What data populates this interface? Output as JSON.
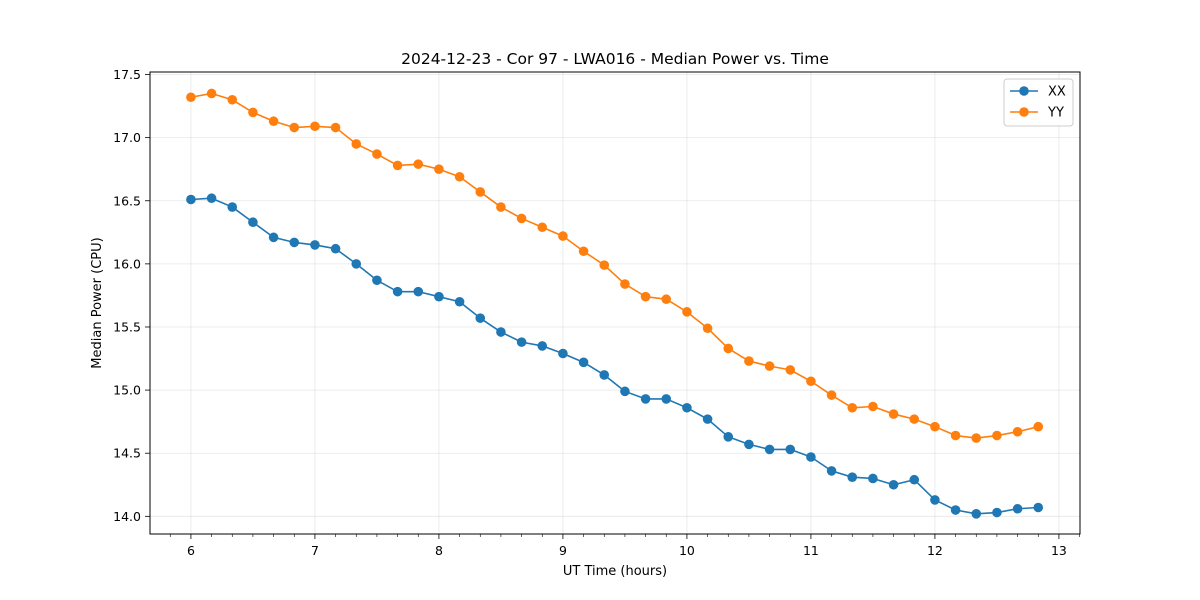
{
  "chart_data": {
    "type": "line",
    "title": "2024-12-23 - Cor 97 - LWA016 - Median Power vs. Time",
    "xlabel": "UT Time (hours)",
    "ylabel": "Median Power (CPU)",
    "xlim": [
      5.67,
      13.17
    ],
    "ylim": [
      13.86,
      17.52
    ],
    "xticks": [
      6,
      7,
      8,
      9,
      10,
      11,
      12,
      13
    ],
    "xtick_labels": [
      "6",
      "7",
      "8",
      "9",
      "10",
      "11",
      "12",
      "13"
    ],
    "yticks": [
      14.0,
      14.5,
      15.0,
      15.5,
      16.0,
      16.5,
      17.0,
      17.5
    ],
    "ytick_labels": [
      "14.0",
      "14.5",
      "15.0",
      "15.5",
      "16.0",
      "16.5",
      "17.0",
      "17.5"
    ],
    "grid": true,
    "legend_position": "top-right",
    "x": [
      6.0,
      6.1667,
      6.3333,
      6.5,
      6.6667,
      6.8333,
      7.0,
      7.1667,
      7.3333,
      7.5,
      7.6667,
      7.8333,
      8.0,
      8.1667,
      8.3333,
      8.5,
      8.6667,
      8.8333,
      9.0,
      9.1667,
      9.3333,
      9.5,
      9.6667,
      9.8333,
      10.0,
      10.1667,
      10.3333,
      10.5,
      10.6667,
      10.8333,
      11.0,
      11.1667,
      11.3333,
      11.5,
      11.6667,
      11.8333,
      12.0,
      12.1667,
      12.3333,
      12.5,
      12.6667,
      12.8333
    ],
    "series": [
      {
        "name": "XX",
        "color": "#1f77b4",
        "values": [
          16.51,
          16.52,
          16.45,
          16.33,
          16.21,
          16.17,
          16.15,
          16.12,
          16.0,
          15.87,
          15.78,
          15.78,
          15.74,
          15.7,
          15.57,
          15.46,
          15.38,
          15.35,
          15.29,
          15.22,
          15.12,
          14.99,
          14.93,
          14.93,
          14.86,
          14.77,
          14.63,
          14.57,
          14.53,
          14.53,
          14.47,
          14.36,
          14.31,
          14.3,
          14.25,
          14.29,
          14.13,
          14.05,
          14.02,
          14.03,
          14.06,
          14.07
        ]
      },
      {
        "name": "YY",
        "color": "#ff7f0e",
        "values": [
          17.32,
          17.35,
          17.3,
          17.2,
          17.13,
          17.08,
          17.09,
          17.08,
          16.95,
          16.87,
          16.78,
          16.79,
          16.75,
          16.69,
          16.57,
          16.45,
          16.36,
          16.29,
          16.22,
          16.1,
          15.99,
          15.84,
          15.74,
          15.72,
          15.62,
          15.49,
          15.33,
          15.23,
          15.19,
          15.16,
          15.07,
          14.96,
          14.86,
          14.87,
          14.81,
          14.77,
          14.71,
          14.64,
          14.62,
          14.64,
          14.67,
          14.71
        ]
      }
    ]
  }
}
